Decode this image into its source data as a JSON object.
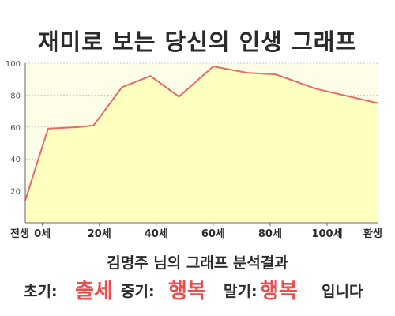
{
  "title": "재미로 보는 당신의 인생 그래프",
  "chart_data": {
    "type": "area",
    "ylim": [
      0,
      100
    ],
    "yticks": [
      20,
      40,
      60,
      80,
      100
    ],
    "xlim": [
      -6,
      102
    ],
    "xticks": [
      {
        "value": -6,
        "label": "전생"
      },
      {
        "value": 0,
        "label": "0세"
      },
      {
        "value": 20,
        "label": "20세"
      },
      {
        "value": 40,
        "label": "40세"
      },
      {
        "value": 60,
        "label": "60세"
      },
      {
        "value": 80,
        "label": "80세"
      },
      {
        "value": 100,
        "label": "100세"
      },
      {
        "value": 114,
        "label": "환생"
      }
    ],
    "points": [
      {
        "x": -6,
        "y": 14
      },
      {
        "x": 2,
        "y": 59
      },
      {
        "x": 13,
        "y": 60
      },
      {
        "x": 18,
        "y": 61
      },
      {
        "x": 28,
        "y": 85
      },
      {
        "x": 38,
        "y": 92
      },
      {
        "x": 48,
        "y": 79
      },
      {
        "x": 60,
        "y": 98
      },
      {
        "x": 72,
        "y": 94
      },
      {
        "x": 82,
        "y": 93
      },
      {
        "x": 96,
        "y": 84
      },
      {
        "x": 114,
        "y": 75
      }
    ],
    "colors": {
      "fill": "#ffffc0",
      "line": "#e86a6a",
      "grid": "#c9c9c9",
      "plot_bg": "#fefee8"
    },
    "grid": true
  },
  "result": {
    "text": "김명주 님의 그래프 분석결과"
  },
  "status": {
    "early_label": "초기:",
    "early_value": "출세",
    "middle_label": "중기:",
    "middle_value": "행복",
    "late_label": "말기:",
    "late_value": "행복",
    "suffix": "입니다"
  }
}
